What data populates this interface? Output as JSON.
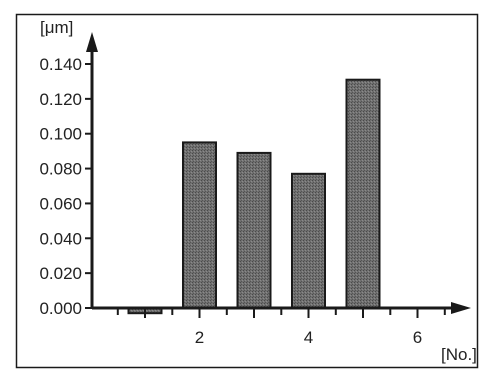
{
  "chart_data": {
    "type": "bar",
    "x": [
      1,
      2,
      3,
      4,
      5
    ],
    "values": [
      -0.003,
      0.095,
      0.089,
      0.077,
      0.131
    ],
    "xlabel": "[No.]",
    "ylabel": "[μm]",
    "xlim": [
      0,
      7
    ],
    "ylim": [
      0,
      0.14
    ],
    "x_ticks": [
      1,
      2,
      3,
      4,
      5,
      6
    ],
    "x_tick_labels": [
      "2",
      "4",
      "6"
    ],
    "y_ticks": [
      0.0,
      0.02,
      0.04,
      0.06,
      0.08,
      0.1,
      0.12,
      0.14
    ],
    "y_tick_labels": [
      "0.000",
      "0.020",
      "0.040",
      "0.060",
      "0.080",
      "0.100",
      "0.120",
      "0.140"
    ],
    "grid": false,
    "legend": "none",
    "bar_color": "#6e6e6e",
    "bar_edge_color": "#1a1a1a",
    "axis_color": "#1a1a1a"
  }
}
